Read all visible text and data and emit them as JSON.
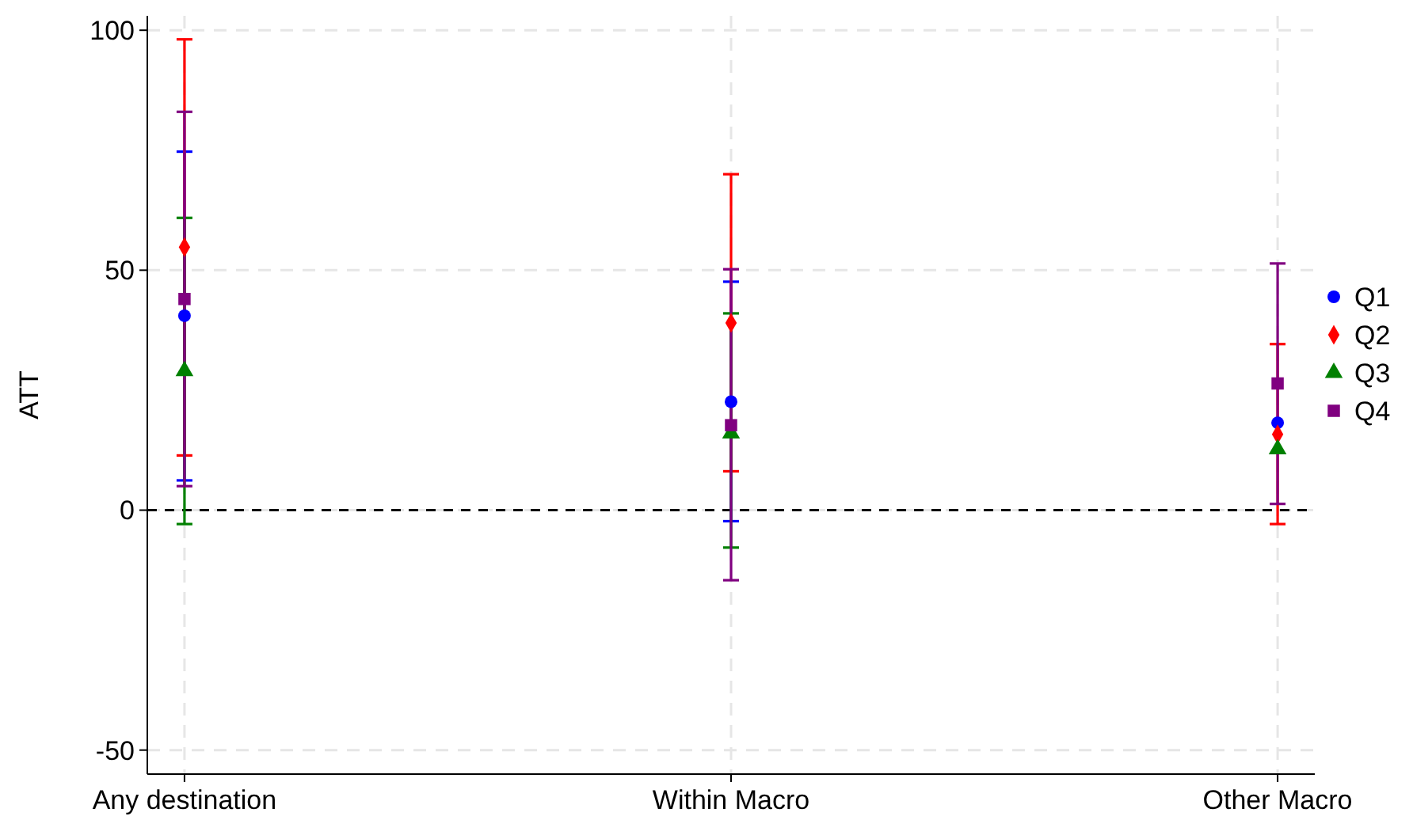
{
  "chart_data": {
    "type": "scatter",
    "ylabel": "ATT",
    "categories": [
      "Any destination",
      "Within Macro",
      "Other Macro"
    ],
    "series": [
      {
        "name": "Q1",
        "color": "#0000ff",
        "marker": "circle",
        "values": [
          40.5,
          22.6,
          18.2
        ],
        "errors": [
          [
            6.2,
            74.7
          ],
          [
            -2.3,
            47.6
          ],
          null
        ]
      },
      {
        "name": "Q2",
        "color": "#ff0000",
        "marker": "diamond",
        "values": [
          54.8,
          39,
          15.8
        ],
        "errors": [
          [
            11.4,
            98.1
          ],
          [
            8.1,
            70
          ],
          [
            -2.9,
            34.6
          ]
        ]
      },
      {
        "name": "Q3",
        "color": "#008000",
        "marker": "triangle",
        "values": [
          29,
          16,
          12.7
        ],
        "errors": [
          [
            -2.9,
            60.9
          ],
          [
            -7.8,
            41
          ],
          null
        ]
      },
      {
        "name": "Q4",
        "color": "#800080",
        "marker": "square",
        "values": [
          44,
          17.7,
          26.4
        ],
        "errors": [
          [
            5,
            83
          ],
          [
            -14.6,
            50.2
          ],
          [
            1.3,
            51.4
          ]
        ]
      }
    ],
    "ylim": [
      -55,
      103
    ],
    "yticks": [
      -50,
      0,
      50,
      100
    ],
    "grid": true,
    "legend": "right",
    "ref_lines": [
      {
        "axis": "y",
        "value": 0,
        "color": "#000000",
        "line_style": "dashed"
      }
    ]
  }
}
